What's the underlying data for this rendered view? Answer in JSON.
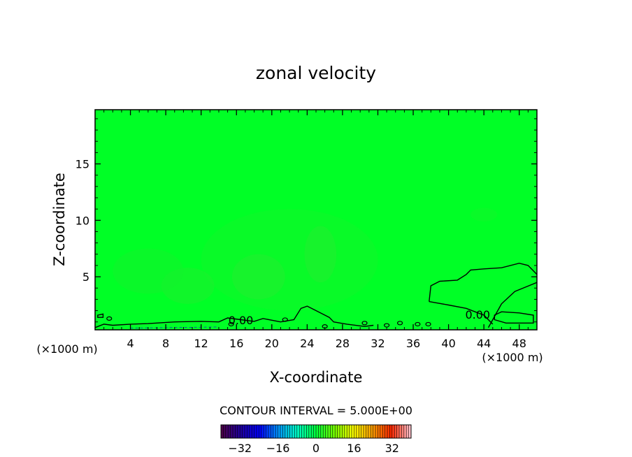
{
  "chart_data": {
    "type": "heatmap",
    "title": "zonal velocity",
    "xlabel": "X-coordinate",
    "ylabel": "Z-coordinate",
    "x_unit_left": "(×1000 m)",
    "x_unit_right": "(×1000 m)",
    "xlim": [
      0,
      50
    ],
    "ylim": [
      0.3,
      19.8
    ],
    "x_ticks": [
      4,
      8,
      12,
      16,
      20,
      24,
      28,
      32,
      36,
      40,
      44,
      48
    ],
    "x_tick_labels": [
      "4",
      "8",
      "12",
      "16",
      "20",
      "24",
      "28",
      "32",
      "36",
      "40",
      "44",
      "48"
    ],
    "y_ticks": [
      5,
      10,
      15
    ],
    "y_tick_labels": [
      "5",
      "10",
      "15"
    ],
    "field_fill_color": "#00ff26",
    "contour_labels": [
      {
        "text": "0.00",
        "x": 16.5,
        "z": 1.1
      },
      {
        "text": "0.00",
        "x": 43.3,
        "z": 1.6
      }
    ],
    "contour_interval_label": "CONTOUR INTERVAL = 5.000E+00",
    "colorbar": {
      "min": -40,
      "max": 40,
      "tick_values": [
        -32,
        -16,
        0,
        16,
        32
      ],
      "tick_labels": [
        "−32",
        "−16",
        "0",
        "16",
        "32"
      ]
    }
  }
}
